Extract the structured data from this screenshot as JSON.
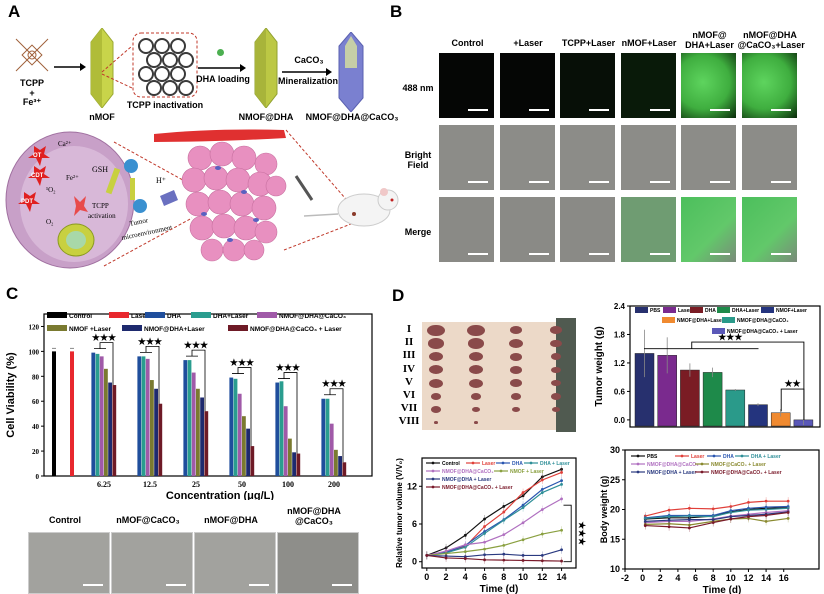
{
  "panels": {
    "A": {
      "letter": "A",
      "steps": {
        "precursor": "TCPP",
        "plus": "+",
        "metal": "Fe³⁺",
        "nmof": "nMOF",
        "inactivation": "TCPP inactivation",
        "dha_loading": "DHA loading",
        "nmof_dha": "NMOF@DHA",
        "caco3": "CaCO₃",
        "mineralization": "Mineralization",
        "final": "NMOF@DHA@CaCO₃"
      },
      "cell": {
        "ot": "OT",
        "cdt": "CDT",
        "pdt": "PDT",
        "ca": "Ca²⁺",
        "fe": "Fe²⁺",
        "gsh": "GSH",
        "singlet_o2": "¹O₂",
        "o2": "O₂",
        "tcpp_activation": "TCPP activation",
        "h_plus": "H⁺",
        "tumor_microenvironment": "Tumor microenvironment"
      }
    },
    "B": {
      "letter": "B",
      "columns": [
        "Control",
        "+Laser",
        "TCPP+Laser",
        "nMOF+Laser",
        "nMOF@ DHA+Laser",
        "nMOF@DHA @CaCO₃+Laser"
      ],
      "rows": [
        "488 nm",
        "Bright Field",
        "Merge"
      ],
      "fluorescence_level": [
        0,
        0,
        0.05,
        0.15,
        0.9,
        0.95
      ]
    },
    "C": {
      "letter": "C",
      "sem_labels": [
        "Control",
        "nMOF@CaCO₃",
        "nMOF@DHA",
        "nMOF@DHA @CaCO₃"
      ]
    },
    "D": {
      "letter": "D",
      "tumor_rows": [
        "I",
        "II",
        "III",
        "IV",
        "V",
        "VI",
        "VII",
        "VIII"
      ]
    }
  },
  "chart_data": [
    {
      "id": "cell-viability",
      "type": "bar",
      "title": "",
      "xlabel": "Concentration (μg/L)",
      "ylabel": "Cell Viability (%)",
      "ylim": [
        0,
        130
      ],
      "yticks": [
        0,
        20,
        40,
        60,
        80,
        100,
        120
      ],
      "controls": [
        {
          "name": "Control",
          "value": 100,
          "color": "#000000"
        },
        {
          "name": "Laser",
          "value": 100,
          "color": "#e8282e"
        }
      ],
      "categories": [
        "6.25",
        "12.5",
        "25",
        "50",
        "100",
        "200"
      ],
      "series": [
        {
          "name": "DHA",
          "color": "#1f4e9c",
          "values": [
            99,
            96,
            93,
            79,
            75,
            62
          ]
        },
        {
          "name": "DHA+Laser",
          "color": "#2a9d8f",
          "values": [
            98,
            96,
            93,
            78,
            76,
            62
          ]
        },
        {
          "name": "NMOF@DHA@CaCO₃",
          "color": "#a05aa8",
          "values": [
            96,
            94,
            83,
            66,
            56,
            42
          ]
        },
        {
          "name": "NMOF +Laser",
          "color": "#7a7a30",
          "values": [
            86,
            77,
            70,
            48,
            30,
            21
          ]
        },
        {
          "name": "NMOF@DHA+Laser",
          "color": "#1e2a6e",
          "values": [
            75,
            70,
            63,
            38,
            19,
            16
          ]
        },
        {
          "name": "NMOF@DHA@CaCO₃ + Laser",
          "color": "#6e1a26",
          "values": [
            73,
            58,
            52,
            24,
            18,
            11
          ]
        }
      ],
      "legend_order": [
        "Control",
        "Laser",
        "DHA",
        "DHA+Laser",
        "NMOF@DHA@CaCO₃",
        "NMOF +Laser",
        "NMOF@DHA+Laser",
        "NMOF@DHA@CaCO₃ + Laser"
      ],
      "significance": [
        "***",
        "*",
        "***",
        "***",
        "**",
        "***",
        "**",
        "***",
        "*",
        "***",
        "**"
      ]
    },
    {
      "id": "tumor-weight",
      "type": "bar",
      "xlabel": "",
      "ylabel": "Tumor weight (g)",
      "ylim": [
        -0.15,
        2.4
      ],
      "yticks": [
        0.0,
        0.6,
        1.2,
        1.8,
        2.4
      ],
      "categories": [
        "PBS",
        "Laser",
        "DHA",
        "DHA+Laser",
        "NMOF@DHA@CaCO₃",
        "NMOF+Laser",
        "NMOF@DHA+Laser",
        "NMOF@DHA@CaCO₃ + Laser"
      ],
      "values": [
        1.4,
        1.36,
        1.05,
        1.0,
        0.63,
        0.32,
        0.15,
        -0.05
      ],
      "errors": [
        0.5,
        0.38,
        0.14,
        0.1,
        0.02,
        0.03,
        0.08,
        0.06
      ],
      "colors": [
        "#27306e",
        "#7a2a8e",
        "#7a1c24",
        "#1e8a4a",
        "#2a9a8a",
        "#24347e",
        "#f08a30",
        "#5a58b8"
      ],
      "legend_labels": [
        "PBS",
        "Laser",
        "DHA",
        "DHA+Laser",
        "NMOF+Laser",
        "NMOF@DHA+Laser",
        "NMOF@DHA@CaCO₃",
        "NMOF@DHA@CaCO₃ + Laser"
      ],
      "legend_colors": [
        "#27306e",
        "#7a2a8e",
        "#7a1c24",
        "#1e8a4a",
        "#24347e",
        "#f08a30",
        "#2a9a8a",
        "#5a58b8"
      ],
      "significance": [
        "***",
        "**"
      ]
    },
    {
      "id": "relative-tumor-volume",
      "type": "line",
      "xlabel": "Time (d)",
      "ylabel": "Relative tumor volume (V/V₀)",
      "xlim": [
        -0.5,
        15.5
      ],
      "ylim": [
        -1,
        16.5
      ],
      "xticks": [
        0,
        2,
        4,
        6,
        8,
        10,
        12,
        14
      ],
      "yticks": [
        0,
        6,
        12
      ],
      "x": [
        0,
        2,
        4,
        6,
        8,
        10,
        12,
        14
      ],
      "series": [
        {
          "name": "Control",
          "color": "#111111",
          "values": [
            1,
            2.2,
            4.2,
            6.8,
            8.8,
            10.5,
            13.5,
            14.7
          ]
        },
        {
          "name": "Laser",
          "color": "#e0403a",
          "values": [
            1,
            1.6,
            2.4,
            5.6,
            7.9,
            11.0,
            13.0,
            14.2
          ]
        },
        {
          "name": "DHA",
          "color": "#2a56b0",
          "values": [
            1,
            1.5,
            2.6,
            4.8,
            6.7,
            9.0,
            11.5,
            12.9
          ]
        },
        {
          "name": "DHA + Laser",
          "color": "#2f8f98",
          "values": [
            1,
            1.4,
            2.3,
            4.5,
            6.6,
            8.6,
            11.0,
            12.3
          ]
        },
        {
          "name": "NMOF@DHA@CaCO₃",
          "color": "#b070c0",
          "values": [
            1,
            1.7,
            2.7,
            3.1,
            4.3,
            6.2,
            8.3,
            10.0
          ]
        },
        {
          "name": "NMOF + Laser",
          "color": "#8aa040",
          "values": [
            1,
            1.3,
            1.6,
            2.0,
            2.6,
            3.5,
            4.4,
            5.0
          ]
        },
        {
          "name": "NMOF@DHA + Laser",
          "color": "#2a3a80",
          "values": [
            1,
            0.9,
            0.8,
            1.1,
            1.2,
            1.0,
            1.0,
            1.9
          ]
        },
        {
          "name": "NMOF@DHA@CaCO₃ + Laser",
          "color": "#7a1a2a",
          "values": [
            1,
            0.6,
            0.5,
            0.3,
            0.25,
            0.2,
            0.15,
            0.1
          ]
        }
      ],
      "significance": "***"
    },
    {
      "id": "body-weight",
      "type": "line",
      "xlabel": "Time (d)",
      "ylabel": "Body weight (g)",
      "xlim": [
        -2,
        20
      ],
      "ylim": [
        10,
        30
      ],
      "xticks": [
        -2,
        0,
        2,
        4,
        6,
        8,
        10,
        12,
        14,
        16
      ],
      "yticks": [
        10,
        15,
        20,
        25,
        30
      ],
      "x": [
        0.3,
        3,
        5.3,
        8,
        10,
        12,
        14,
        16.5
      ],
      "series": [
        {
          "name": "PBS",
          "color": "#111111",
          "values": [
            18.4,
            18.6,
            18.6,
            18.9,
            19.6,
            20.0,
            20.2,
            20.3
          ]
        },
        {
          "name": "Laser",
          "color": "#e0403a",
          "values": [
            18.9,
            19.9,
            20.2,
            20.1,
            20.5,
            21.2,
            21.4,
            21.4
          ]
        },
        {
          "name": "DHA",
          "color": "#2a56b0",
          "values": [
            18.6,
            19.0,
            19.0,
            19.0,
            19.8,
            20.2,
            20.4,
            20.5
          ]
        },
        {
          "name": "DHA + Laser",
          "color": "#2f8f98",
          "values": [
            18.5,
            18.8,
            18.9,
            18.8,
            19.5,
            19.9,
            20.0,
            20.2
          ]
        },
        {
          "name": "NMOF@DHA@CaCO₃",
          "color": "#b070c0",
          "values": [
            17.8,
            18.0,
            18.0,
            18.4,
            18.9,
            19.2,
            19.5,
            19.8
          ]
        },
        {
          "name": "NMOF@CaCO₃ + Laser",
          "color": "#8a8a30",
          "values": [
            17.5,
            17.6,
            17.4,
            18.0,
            18.4,
            18.5,
            18.0,
            18.5
          ]
        },
        {
          "name": "NMOF@DHA + Laser",
          "color": "#2a3a80",
          "values": [
            18.0,
            18.2,
            18.3,
            18.3,
            18.8,
            19.0,
            19.2,
            19.6
          ]
        },
        {
          "name": "NMOF@DHA@CaCO₃ + Laser",
          "color": "#7a1a2a",
          "values": [
            17.3,
            17.1,
            16.9,
            17.8,
            18.4,
            18.8,
            19.0,
            19.5
          ]
        }
      ]
    }
  ]
}
